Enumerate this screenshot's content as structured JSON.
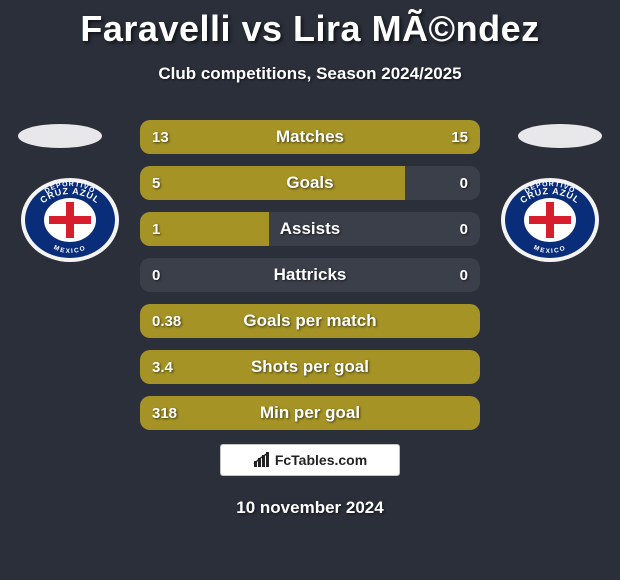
{
  "title": "Faravelli vs Lira MÃ©ndez",
  "subtitle": "Club competitions, Season 2024/2025",
  "date": "10 november 2024",
  "brand": "FcTables.com",
  "colors": {
    "background": "#2a2f3a",
    "bar_bg": "#3a3f4a",
    "bar_left": "#a59326",
    "bar_right": "#a59326",
    "text": "#ffffff",
    "brand_bg": "#ffffff",
    "brand_text": "#222222"
  },
  "badge": {
    "outer": "#f4f4f4",
    "ring": "#0a2d7a",
    "inner": "#ffffff",
    "cross": "#d81e2c",
    "label_top": "DEPORTIVO",
    "label_mid": "CRUZ AZUL",
    "label_bot": "MEXICO"
  },
  "bars": [
    {
      "label": "Matches",
      "left_text": "13",
      "right_text": "15",
      "left_pct": 46,
      "right_pct": 54
    },
    {
      "label": "Goals",
      "left_text": "5",
      "right_text": "0",
      "left_pct": 78,
      "right_pct": 0
    },
    {
      "label": "Assists",
      "left_text": "1",
      "right_text": "0",
      "left_pct": 38,
      "right_pct": 0
    },
    {
      "label": "Hattricks",
      "left_text": "0",
      "right_text": "0",
      "left_pct": 0,
      "right_pct": 0
    },
    {
      "label": "Goals per match",
      "left_text": "0.38",
      "right_text": "",
      "left_pct": 100,
      "right_pct": 0
    },
    {
      "label": "Shots per goal",
      "left_text": "3.4",
      "right_text": "",
      "left_pct": 100,
      "right_pct": 0
    },
    {
      "label": "Min per goal",
      "left_text": "318",
      "right_text": "",
      "left_pct": 100,
      "right_pct": 0
    }
  ]
}
